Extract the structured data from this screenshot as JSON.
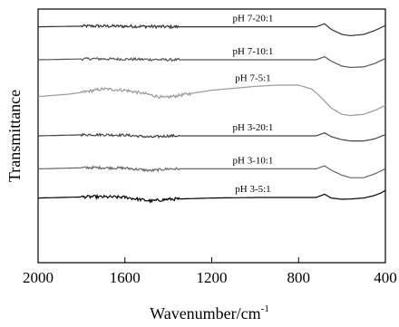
{
  "chart_data": {
    "type": "line",
    "xlabel": "Wavenumber/cm",
    "xlabel_superscript": "-1",
    "ylabel": "Transmittance",
    "xlim": [
      2000,
      400
    ],
    "x_reversed": true,
    "xticks": [
      2000,
      1600,
      1200,
      800,
      400
    ],
    "xtick_labels": [
      "2000",
      "1600",
      "1200",
      "800",
      "400"
    ],
    "y_ticks_labeled": false,
    "grid": false,
    "legend": "none",
    "series": [
      {
        "name": "pH 7-20:1",
        "color": "#333333",
        "baseline": 0.93,
        "noise": 0.006,
        "noise_range": [
          1800,
          1350
        ],
        "points": [
          [
            2000,
            0.0
          ],
          [
            1750,
            0.003
          ],
          [
            1550,
            0.002
          ],
          [
            1400,
            0.0
          ],
          [
            1000,
            0.0
          ],
          [
            720,
            0.0
          ],
          [
            680,
            0.012
          ],
          [
            650,
            -0.01
          ],
          [
            600,
            -0.03
          ],
          [
            560,
            -0.035
          ],
          [
            500,
            -0.03
          ],
          [
            450,
            -0.015
          ],
          [
            400,
            0.005
          ]
        ]
      },
      {
        "name": "pH 7-10:1",
        "color": "#555555",
        "baseline": 0.8,
        "noise": 0.005,
        "noise_range": [
          1800,
          1350
        ],
        "points": [
          [
            2000,
            0.0
          ],
          [
            1750,
            0.004
          ],
          [
            1550,
            0.002
          ],
          [
            1400,
            0.0
          ],
          [
            1000,
            0.0
          ],
          [
            720,
            0.0
          ],
          [
            680,
            0.012
          ],
          [
            650,
            -0.005
          ],
          [
            600,
            -0.025
          ],
          [
            560,
            -0.03
          ],
          [
            500,
            -0.028
          ],
          [
            450,
            -0.015
          ],
          [
            400,
            0.005
          ]
        ]
      },
      {
        "name": "pH 7-5:1",
        "color": "#999999",
        "baseline": 0.655,
        "noise": 0.006,
        "noise_range": [
          1800,
          1300
        ],
        "points": [
          [
            2000,
            0.0
          ],
          [
            1850,
            0.01
          ],
          [
            1700,
            0.03
          ],
          [
            1600,
            0.025
          ],
          [
            1500,
            0.01
          ],
          [
            1420,
            -0.005
          ],
          [
            1350,
            0.005
          ],
          [
            1200,
            0.025
          ],
          [
            1000,
            0.04
          ],
          [
            900,
            0.045
          ],
          [
            800,
            0.045
          ],
          [
            740,
            0.03
          ],
          [
            700,
            0.0
          ],
          [
            650,
            -0.045
          ],
          [
            600,
            -0.07
          ],
          [
            560,
            -0.075
          ],
          [
            500,
            -0.07
          ],
          [
            450,
            -0.055
          ],
          [
            400,
            -0.035
          ]
        ]
      },
      {
        "name": "pH 3-20:1",
        "color": "#444444",
        "baseline": 0.5,
        "noise": 0.005,
        "noise_range": [
          1800,
          1350
        ],
        "points": [
          [
            2000,
            0.0
          ],
          [
            1750,
            0.005
          ],
          [
            1600,
            0.003
          ],
          [
            1480,
            -0.005
          ],
          [
            1400,
            0.0
          ],
          [
            1000,
            0.0
          ],
          [
            720,
            0.0
          ],
          [
            680,
            0.012
          ],
          [
            650,
            -0.003
          ],
          [
            600,
            -0.015
          ],
          [
            560,
            -0.02
          ],
          [
            500,
            -0.02
          ],
          [
            450,
            -0.012
          ],
          [
            400,
            0.005
          ]
        ]
      },
      {
        "name": "pH 3-10:1",
        "color": "#666666",
        "baseline": 0.37,
        "noise": 0.005,
        "noise_range": [
          1800,
          1350
        ],
        "points": [
          [
            2000,
            0.0
          ],
          [
            1750,
            0.005
          ],
          [
            1600,
            0.003
          ],
          [
            1480,
            -0.007
          ],
          [
            1400,
            0.0
          ],
          [
            1000,
            0.0
          ],
          [
            720,
            0.0
          ],
          [
            680,
            0.012
          ],
          [
            650,
            -0.005
          ],
          [
            600,
            -0.025
          ],
          [
            560,
            -0.035
          ],
          [
            500,
            -0.035
          ],
          [
            450,
            -0.02
          ],
          [
            400,
            0.0
          ]
        ]
      },
      {
        "name": "pH 3-5:1",
        "color": "#000000",
        "baseline": 0.255,
        "noise": 0.006,
        "noise_range": [
          1800,
          1350
        ],
        "points": [
          [
            2000,
            0.0
          ],
          [
            1750,
            0.005
          ],
          [
            1600,
            0.003
          ],
          [
            1480,
            -0.012
          ],
          [
            1400,
            -0.005
          ],
          [
            1200,
            0.0
          ],
          [
            1000,
            0.002
          ],
          [
            720,
            0.002
          ],
          [
            680,
            0.015
          ],
          [
            650,
            0.0
          ],
          [
            600,
            -0.005
          ],
          [
            560,
            -0.004
          ],
          [
            500,
            0.0
          ],
          [
            450,
            0.01
          ],
          [
            420,
            0.02
          ],
          [
            400,
            0.03
          ]
        ]
      }
    ]
  }
}
